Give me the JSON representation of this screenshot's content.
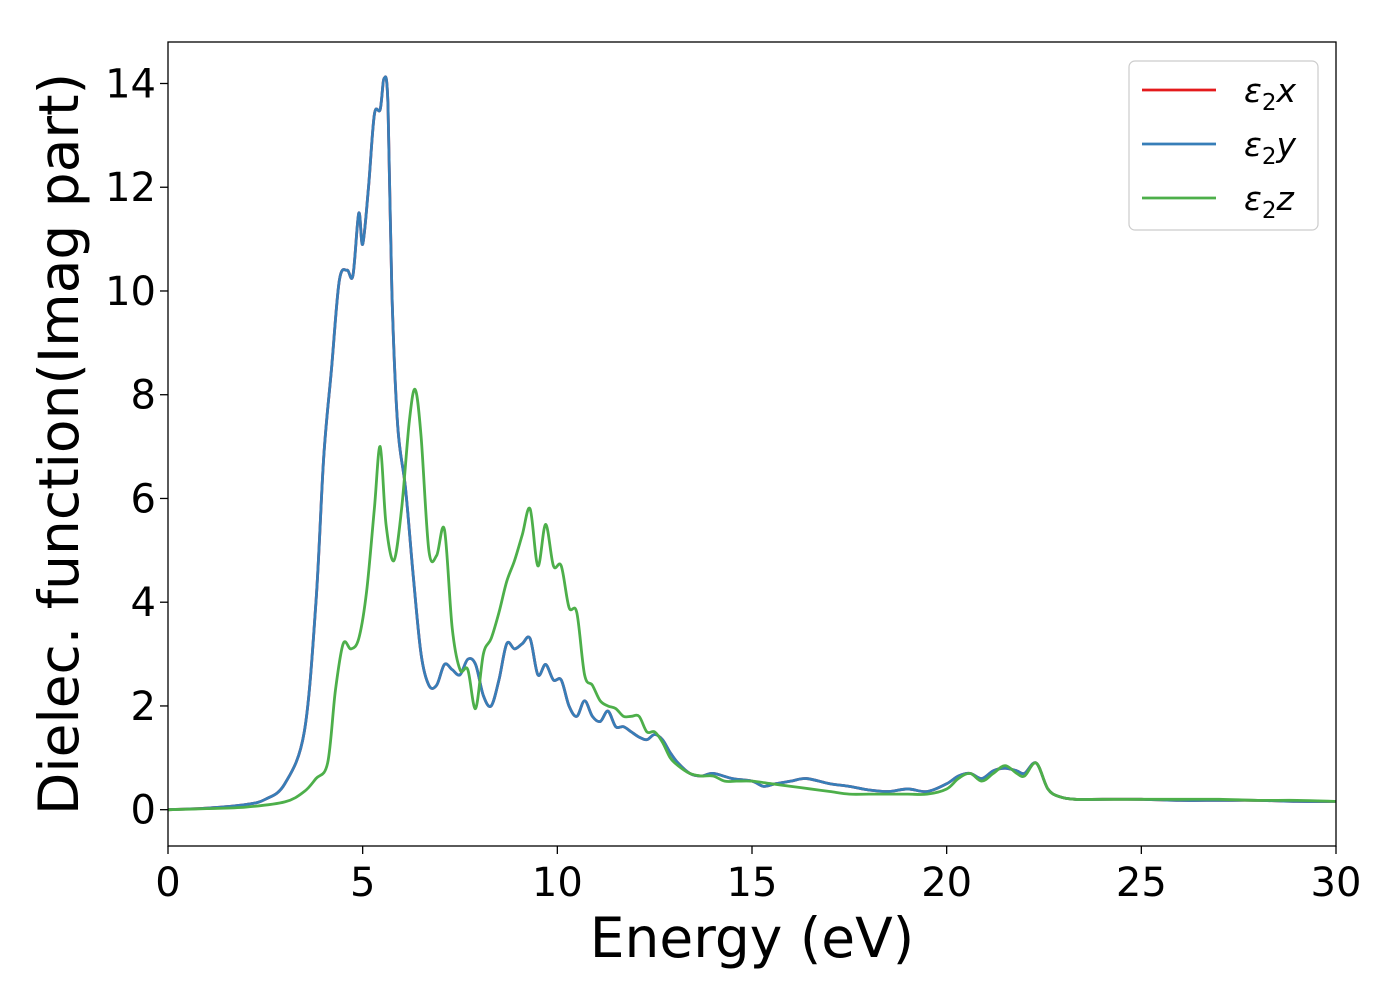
{
  "chart_data": {
    "type": "line",
    "title": "",
    "xlabel": "Energy (eV)",
    "ylabel": "Dielec. function(Imag part)",
    "xlim": [
      0,
      30
    ],
    "ylim": [
      -0.7,
      14.8
    ],
    "xticks": [
      "0",
      "5",
      "10",
      "15",
      "20",
      "25",
      "30"
    ],
    "yticks": [
      "0",
      "2",
      "4",
      "6",
      "8",
      "10",
      "12",
      "14"
    ],
    "grid": false,
    "legend_position": "top-right",
    "series": [
      {
        "name": "ε2x",
        "legend_base": "ε",
        "legend_sub": "2",
        "legend_var": "x",
        "color": "#e41a1c",
        "x": [
          0,
          1,
          2,
          2.5,
          3,
          3.5,
          3.8,
          4,
          4.2,
          4.4,
          4.6,
          4.75,
          4.9,
          5,
          5.15,
          5.3,
          5.45,
          5.55,
          5.65,
          5.75,
          5.9,
          6.1,
          6.3,
          6.5,
          6.7,
          6.9,
          7.1,
          7.3,
          7.5,
          7.7,
          7.9,
          8.1,
          8.3,
          8.5,
          8.7,
          8.9,
          9.1,
          9.3,
          9.5,
          9.7,
          9.9,
          10.1,
          10.3,
          10.5,
          10.7,
          10.9,
          11.1,
          11.3,
          11.5,
          11.7,
          11.9,
          12.1,
          12.3,
          12.5,
          12.7,
          12.9,
          13.1,
          13.4,
          13.7,
          14,
          14.5,
          15,
          15.3,
          15.6,
          16,
          16.4,
          17,
          17.5,
          18,
          18.5,
          19,
          19.5,
          20,
          20.3,
          20.6,
          20.9,
          21.2,
          21.5,
          21.8,
          22,
          22.3,
          22.6,
          22.9,
          23.3,
          24,
          25,
          26,
          27,
          28,
          29,
          30
        ],
        "y": [
          0,
          0.03,
          0.1,
          0.2,
          0.5,
          1.5,
          4,
          6.8,
          8.5,
          10.2,
          10.4,
          10.3,
          11.5,
          10.9,
          12,
          13.4,
          13.5,
          14.1,
          13.6,
          10,
          7.4,
          6.2,
          4.5,
          3,
          2.4,
          2.4,
          2.8,
          2.7,
          2.6,
          2.9,
          2.8,
          2.2,
          2.0,
          2.5,
          3.2,
          3.1,
          3.2,
          3.3,
          2.6,
          2.8,
          2.5,
          2.5,
          2.0,
          1.8,
          2.1,
          1.8,
          1.7,
          1.9,
          1.6,
          1.6,
          1.5,
          1.4,
          1.35,
          1.45,
          1.35,
          1.1,
          0.9,
          0.7,
          0.65,
          0.7,
          0.6,
          0.55,
          0.45,
          0.5,
          0.55,
          0.6,
          0.5,
          0.45,
          0.38,
          0.35,
          0.4,
          0.35,
          0.5,
          0.65,
          0.7,
          0.6,
          0.75,
          0.8,
          0.75,
          0.7,
          0.9,
          0.4,
          0.25,
          0.2,
          0.2,
          0.2,
          0.18,
          0.18,
          0.18,
          0.16,
          0.16
        ]
      },
      {
        "name": "ε2y",
        "legend_base": "ε",
        "legend_sub": "2",
        "legend_var": "y",
        "color": "#377eb8",
        "x": [
          0,
          1,
          2,
          2.5,
          3,
          3.5,
          3.8,
          4,
          4.2,
          4.4,
          4.6,
          4.75,
          4.9,
          5,
          5.15,
          5.3,
          5.45,
          5.55,
          5.65,
          5.75,
          5.9,
          6.1,
          6.3,
          6.5,
          6.7,
          6.9,
          7.1,
          7.3,
          7.5,
          7.7,
          7.9,
          8.1,
          8.3,
          8.5,
          8.7,
          8.9,
          9.1,
          9.3,
          9.5,
          9.7,
          9.9,
          10.1,
          10.3,
          10.5,
          10.7,
          10.9,
          11.1,
          11.3,
          11.5,
          11.7,
          11.9,
          12.1,
          12.3,
          12.5,
          12.7,
          12.9,
          13.1,
          13.4,
          13.7,
          14,
          14.5,
          15,
          15.3,
          15.6,
          16,
          16.4,
          17,
          17.5,
          18,
          18.5,
          19,
          19.5,
          20,
          20.3,
          20.6,
          20.9,
          21.2,
          21.5,
          21.8,
          22,
          22.3,
          22.6,
          22.9,
          23.3,
          24,
          25,
          26,
          27,
          28,
          29,
          30
        ],
        "y": [
          0,
          0.03,
          0.1,
          0.2,
          0.5,
          1.5,
          4,
          6.8,
          8.5,
          10.2,
          10.4,
          10.3,
          11.5,
          10.9,
          12,
          13.4,
          13.5,
          14.1,
          13.6,
          10,
          7.4,
          6.2,
          4.5,
          3,
          2.4,
          2.4,
          2.8,
          2.7,
          2.6,
          2.9,
          2.8,
          2.2,
          2.0,
          2.5,
          3.2,
          3.1,
          3.2,
          3.3,
          2.6,
          2.8,
          2.5,
          2.5,
          2.0,
          1.8,
          2.1,
          1.8,
          1.7,
          1.9,
          1.6,
          1.6,
          1.5,
          1.4,
          1.35,
          1.45,
          1.35,
          1.1,
          0.9,
          0.7,
          0.65,
          0.7,
          0.6,
          0.55,
          0.45,
          0.5,
          0.55,
          0.6,
          0.5,
          0.45,
          0.38,
          0.35,
          0.4,
          0.35,
          0.5,
          0.65,
          0.7,
          0.6,
          0.75,
          0.8,
          0.75,
          0.7,
          0.9,
          0.4,
          0.25,
          0.2,
          0.2,
          0.2,
          0.18,
          0.18,
          0.18,
          0.16,
          0.16
        ]
      },
      {
        "name": "ε2z",
        "legend_base": "ε",
        "legend_sub": "2",
        "legend_var": "z",
        "color": "#4daf4a",
        "x": [
          0,
          1,
          2,
          3,
          3.5,
          3.8,
          4.1,
          4.3,
          4.5,
          4.7,
          4.9,
          5.1,
          5.3,
          5.45,
          5.6,
          5.8,
          6,
          6.2,
          6.35,
          6.5,
          6.7,
          6.9,
          7.1,
          7.3,
          7.5,
          7.7,
          7.9,
          8.1,
          8.3,
          8.5,
          8.7,
          8.9,
          9.1,
          9.3,
          9.5,
          9.7,
          9.9,
          10.1,
          10.3,
          10.5,
          10.7,
          10.9,
          11.1,
          11.3,
          11.5,
          11.7,
          11.9,
          12.1,
          12.3,
          12.5,
          12.7,
          12.9,
          13.1,
          13.4,
          13.7,
          14,
          14.3,
          14.6,
          15,
          15.5,
          16,
          16.5,
          17,
          17.5,
          18,
          18.5,
          19,
          19.5,
          20,
          20.3,
          20.6,
          20.9,
          21.2,
          21.5,
          21.8,
          22,
          22.3,
          22.6,
          22.9,
          23.3,
          24,
          25,
          26,
          27,
          28,
          29,
          30
        ],
        "y": [
          0,
          0.02,
          0.05,
          0.15,
          0.35,
          0.6,
          0.9,
          2.3,
          3.2,
          3.1,
          3.3,
          4.2,
          5.8,
          7.0,
          5.5,
          4.8,
          5.8,
          7.5,
          8.1,
          7.2,
          5.0,
          4.9,
          5.4,
          3.5,
          2.7,
          2.7,
          1.95,
          3.0,
          3.3,
          3.8,
          4.4,
          4.8,
          5.3,
          5.8,
          4.7,
          5.5,
          4.7,
          4.7,
          3.9,
          3.8,
          2.6,
          2.4,
          2.1,
          2.0,
          1.95,
          1.8,
          1.8,
          1.8,
          1.5,
          1.5,
          1.3,
          1.0,
          0.85,
          0.7,
          0.65,
          0.65,
          0.55,
          0.55,
          0.55,
          0.5,
          0.45,
          0.4,
          0.35,
          0.3,
          0.3,
          0.3,
          0.3,
          0.3,
          0.4,
          0.6,
          0.7,
          0.55,
          0.7,
          0.85,
          0.7,
          0.65,
          0.9,
          0.4,
          0.25,
          0.2,
          0.2,
          0.2,
          0.2,
          0.2,
          0.18,
          0.18,
          0.16
        ]
      }
    ]
  }
}
